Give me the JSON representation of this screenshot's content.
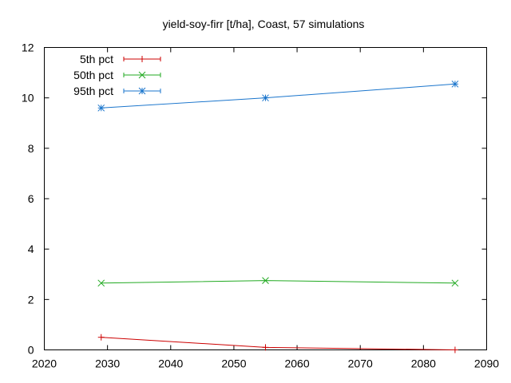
{
  "chart_data": {
    "type": "line",
    "title": "yield-soy-firr [t/ha], Coast, 57 simulations",
    "xlabel": "",
    "ylabel": "",
    "xlim": [
      2020,
      2090
    ],
    "ylim": [
      0,
      12
    ],
    "xticks": [
      2020,
      2030,
      2040,
      2050,
      2060,
      2070,
      2080,
      2090
    ],
    "yticks": [
      0,
      2,
      4,
      6,
      8,
      10,
      12
    ],
    "x": [
      2029,
      2055,
      2085
    ],
    "series": [
      {
        "name": "5th pct",
        "values": [
          0.5,
          0.1,
          0.0
        ],
        "color": "#cc0000",
        "marker": "plus"
      },
      {
        "name": "50th pct",
        "values": [
          2.65,
          2.75,
          2.65
        ],
        "color": "#22aa22",
        "marker": "cross"
      },
      {
        "name": "95th pct",
        "values": [
          9.6,
          10.0,
          10.55
        ],
        "color": "#1a75cc",
        "marker": "star"
      }
    ],
    "grid": false,
    "legend_position": "top-left"
  }
}
